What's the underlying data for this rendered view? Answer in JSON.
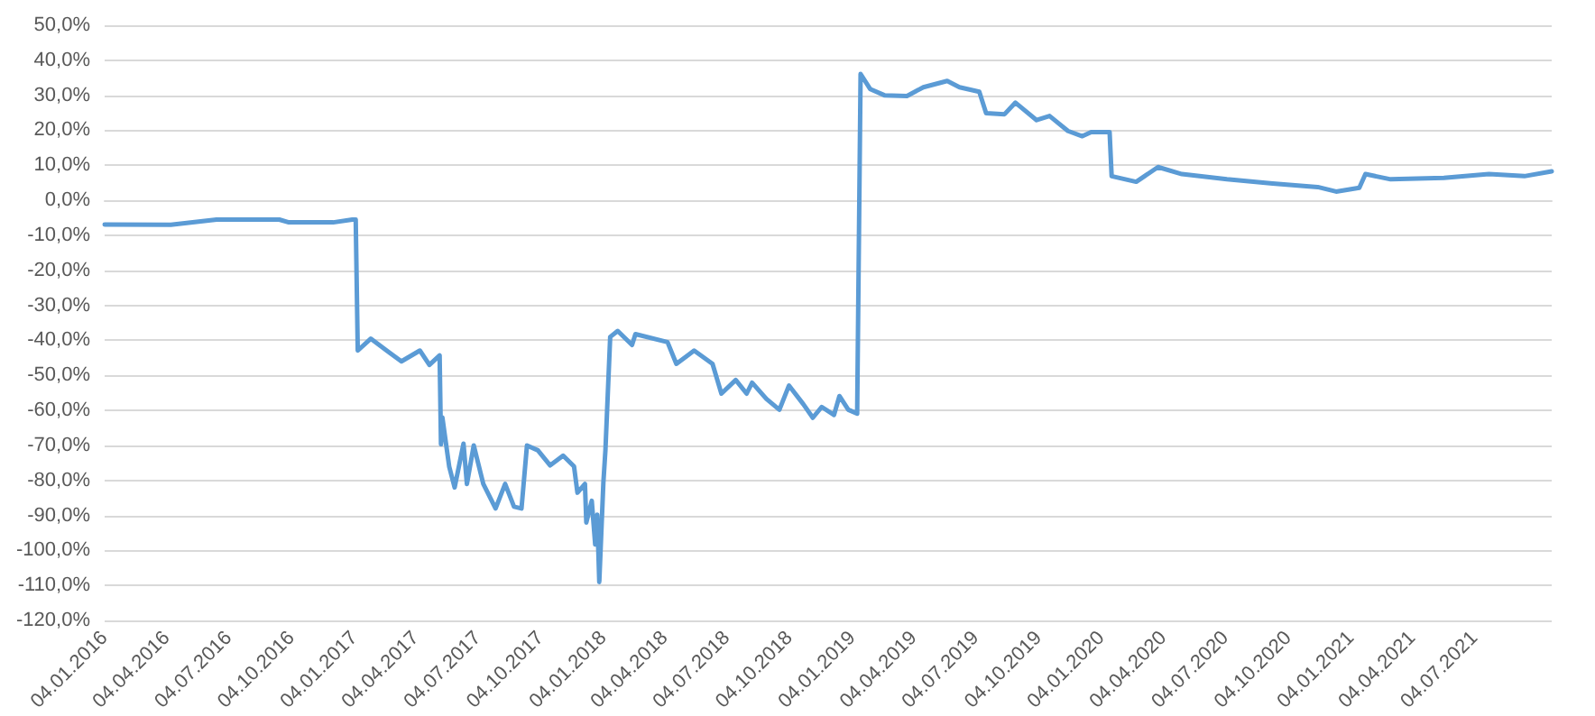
{
  "chart_data": {
    "type": "line",
    "x": [
      "2016-01-04",
      "2016-04-10",
      "2016-06-16",
      "2016-09-16",
      "2016-09-30",
      "2016-12-04",
      "2017-01-01",
      "2017-01-06",
      "2017-01-09",
      "2017-01-28",
      "2017-02-23",
      "2017-03-14",
      "2017-04-10",
      "2017-04-24",
      "2017-05-09",
      "2017-05-11",
      "2017-05-13",
      "2017-05-23",
      "2017-05-31",
      "2017-06-13",
      "2017-06-18",
      "2017-06-28",
      "2017-07-12",
      "2017-07-30",
      "2017-08-13",
      "2017-08-26",
      "2017-09-06",
      "2017-09-14",
      "2017-09-30",
      "2017-10-18",
      "2017-11-06",
      "2017-11-22",
      "2017-11-27",
      "2017-12-08",
      "2017-12-10",
      "2017-12-18",
      "2017-12-23",
      "2017-12-26",
      "2017-12-29",
      "2018-01-04",
      "2018-01-07",
      "2018-01-14",
      "2018-01-25",
      "2018-02-15",
      "2018-02-20",
      "2018-04-08",
      "2018-04-21",
      "2018-05-17",
      "2018-06-13",
      "2018-06-26",
      "2018-07-17",
      "2018-08-02",
      "2018-08-10",
      "2018-08-31",
      "2018-09-19",
      "2018-10-03",
      "2018-10-24",
      "2018-11-07",
      "2018-11-20",
      "2018-12-08",
      "2018-12-16",
      "2018-12-29",
      "2019-01-11",
      "2019-01-16",
      "2019-01-30",
      "2019-02-20",
      "2019-03-25",
      "2019-04-18",
      "2019-05-23",
      "2019-06-10",
      "2019-07-09",
      "2019-07-19",
      "2019-08-15",
      "2019-08-31",
      "2019-10-01",
      "2019-10-20",
      "2019-11-16",
      "2019-12-07",
      "2019-12-20",
      "2020-01-16",
      "2020-01-19",
      "2020-02-24",
      "2020-03-27",
      "2020-05-01",
      "2020-07-06",
      "2020-09-11",
      "2020-11-16",
      "2020-12-13",
      "2021-01-16",
      "2021-01-25",
      "2021-03-03",
      "2021-05-20",
      "2021-07-25",
      "2021-09-15",
      "2021-10-25"
    ],
    "series": [
      {
        "color": "#5b9bd5",
        "values": [
          -6.9,
          -7,
          -5.5,
          -5.5,
          -6.3,
          -6.3,
          -5.5,
          -5.5,
          -42.9,
          -39.5,
          -43.3,
          -46,
          -42.9,
          -47,
          -44.3,
          -69.7,
          -62,
          -76,
          -82,
          -69.5,
          -81,
          -70,
          -81,
          -88,
          -81,
          -87.5,
          -88,
          -70,
          -71.4,
          -75.7,
          -72.9,
          -76,
          -83.5,
          -81,
          -92,
          -85.8,
          -98.3,
          -89.8,
          -109,
          -80.6,
          -71.4,
          -39,
          -37.3,
          -41.3,
          -38.2,
          -40.5,
          -46.7,
          -42.9,
          -46.7,
          -55.2,
          -51.3,
          -55.2,
          -52.1,
          -56.7,
          -59.8,
          -52.9,
          -58.2,
          -62.1,
          -59,
          -61.3,
          -55.9,
          -59.8,
          -60.9,
          36.1,
          31.8,
          30,
          29.8,
          32.3,
          34.1,
          32.3,
          31,
          24.9,
          24.6,
          27.9,
          22.9,
          24.1,
          19.8,
          18.3,
          19.5,
          19.5,
          6.9,
          5.3,
          9.5,
          7.5,
          6,
          4.8,
          3.8,
          2.5,
          3.6,
          7.5,
          6,
          6.4,
          7.5,
          6.9,
          8.3
        ]
      }
    ],
    "xlim": [
      "2016-01-04",
      "2021-10-25"
    ],
    "xticks": [
      {
        "value": "2016-01-04",
        "label": "04.01.2016"
      },
      {
        "value": "2016-04-04",
        "label": "04.04.2016"
      },
      {
        "value": "2016-07-04",
        "label": "04.07.2016"
      },
      {
        "value": "2016-10-04",
        "label": "04.10.2016"
      },
      {
        "value": "2017-01-04",
        "label": "04.01.2017"
      },
      {
        "value": "2017-04-04",
        "label": "04.04.2017"
      },
      {
        "value": "2017-07-04",
        "label": "04.07.2017"
      },
      {
        "value": "2017-10-04",
        "label": "04.10.2017"
      },
      {
        "value": "2018-01-04",
        "label": "04.01.2018"
      },
      {
        "value": "2018-04-04",
        "label": "04.04.2018"
      },
      {
        "value": "2018-07-04",
        "label": "04.07.2018"
      },
      {
        "value": "2018-10-04",
        "label": "04.10.2018"
      },
      {
        "value": "2019-01-04",
        "label": "04.01.2019"
      },
      {
        "value": "2019-04-04",
        "label": "04.04.2019"
      },
      {
        "value": "2019-07-04",
        "label": "04.07.2019"
      },
      {
        "value": "2019-10-04",
        "label": "04.10.2019"
      },
      {
        "value": "2020-01-04",
        "label": "04.01.2020"
      },
      {
        "value": "2020-04-04",
        "label": "04.04.2020"
      },
      {
        "value": "2020-07-04",
        "label": "04.07.2020"
      },
      {
        "value": "2020-10-04",
        "label": "04.10.2020"
      },
      {
        "value": "2021-01-04",
        "label": "04.01.2021"
      },
      {
        "value": "2021-04-04",
        "label": "04.04.2021"
      },
      {
        "value": "2021-07-04",
        "label": "04.07.2021"
      }
    ],
    "ylim": [
      -120,
      50
    ],
    "yticks": [
      {
        "value": -120,
        "label": "-120,0%"
      },
      {
        "value": -110,
        "label": "-110,0%"
      },
      {
        "value": -100,
        "label": "-100,0%"
      },
      {
        "value": -90,
        "label": "-90,0%"
      },
      {
        "value": -80,
        "label": "-80,0%"
      },
      {
        "value": -70,
        "label": "-70,0%"
      },
      {
        "value": -60,
        "label": "-60,0%"
      },
      {
        "value": -50,
        "label": "-50,0%"
      },
      {
        "value": -40,
        "label": "-40,0%"
      },
      {
        "value": -30,
        "label": "-30,0%"
      },
      {
        "value": -20,
        "label": "-20,0%"
      },
      {
        "value": -10,
        "label": "-10,0%"
      },
      {
        "value": 0,
        "label": "0,0%"
      },
      {
        "value": 10,
        "label": "10,0%"
      },
      {
        "value": 20,
        "label": "20,0%"
      },
      {
        "value": 30,
        "label": "30,0%"
      },
      {
        "value": 40,
        "label": "40,0%"
      },
      {
        "value": 50,
        "label": "50,0%"
      }
    ],
    "grid": "y",
    "marker": "none",
    "line_style": "solid"
  }
}
